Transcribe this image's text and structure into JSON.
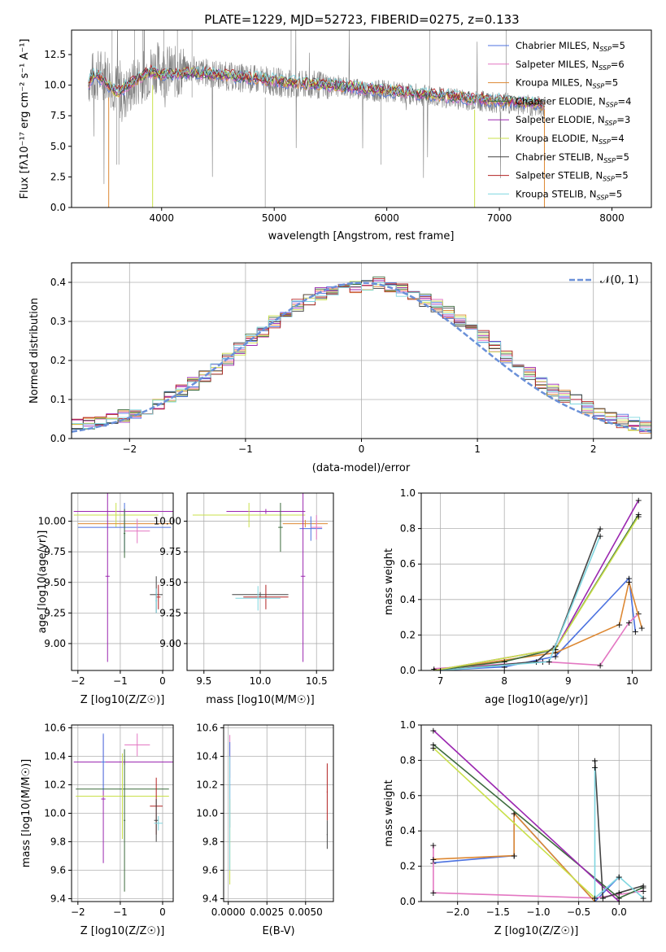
{
  "figure_title": "PLATE=1229, MJD=52723, FIBERID=0275, z=0.133",
  "legend_entries": [
    {
      "name": "Chabrier MILES",
      "nssp": "5",
      "color": "#4c72e0"
    },
    {
      "name": "Salpeter MILES",
      "nssp": "6",
      "color": "#e377c2"
    },
    {
      "name": "Kroupa MILES",
      "nssp": "5",
      "color": "#dd8833"
    },
    {
      "name": "Chabrier ELODIE",
      "nssp": "4",
      "color": "#3d6b3d"
    },
    {
      "name": "Salpeter ELODIE",
      "nssp": "3",
      "color": "#9b27b0"
    },
    {
      "name": "Kroupa ELODIE",
      "nssp": "4",
      "color": "#c9e04a"
    },
    {
      "name": "Chabrier STELIB",
      "nssp": "5",
      "color": "#444444"
    },
    {
      "name": "Salpeter STELIB",
      "nssp": "5",
      "color": "#b22222"
    },
    {
      "name": "Kroupa STELIB",
      "nssp": "5",
      "color": "#7fd6e0"
    }
  ],
  "chart_data": [
    {
      "id": "spectrum",
      "type": "line",
      "xlabel": "wavelength [Angstrom, rest frame]",
      "ylabel": "Flux [fλ10⁻¹⁷ erg cm⁻² s⁻¹ A⁻¹]",
      "xlim": [
        3200,
        8350
      ],
      "ylim": [
        0,
        14.5
      ],
      "xticks": [
        "4000",
        "5000",
        "6000",
        "7000",
        "8000"
      ],
      "yticks": [
        "0.0",
        "2.5",
        "5.0",
        "7.5",
        "10.0",
        "12.5"
      ],
      "data_series": {
        "name": "data",
        "color": "#808080",
        "x": [
          3350,
          3500,
          3650,
          3800,
          3950,
          4100,
          4250,
          4400,
          4600,
          4800,
          5000,
          5200,
          5400,
          5600,
          5800,
          6000,
          6200,
          6400,
          6600,
          6800,
          7000,
          7200,
          7400
        ],
        "y": [
          10.5,
          11.0,
          9.0,
          10.5,
          11.5,
          11.0,
          11.3,
          11.0,
          10.7,
          10.5,
          10.3,
          10.0,
          10.0,
          9.9,
          9.6,
          9.5,
          9.3,
          9.1,
          8.9,
          8.7,
          8.6,
          8.4,
          8.2
        ]
      },
      "model_x": [
        3350,
        3400,
        3500,
        3600,
        3700,
        3800,
        3900,
        4000,
        4200,
        4500,
        4800,
        5200,
        5600,
        6000,
        6400,
        6800,
        7200,
        7400
      ],
      "model_y": [
        10.1,
        10.9,
        10.3,
        9.3,
        10.0,
        10.6,
        11.1,
        10.8,
        11.0,
        10.9,
        10.6,
        10.2,
        9.9,
        9.6,
        9.2,
        8.9,
        8.6,
        8.4
      ]
    },
    {
      "id": "residuals",
      "type": "bar",
      "xlabel": "(data-model)/error",
      "ylabel": "Normed distribution",
      "xlim": [
        -2.5,
        2.5
      ],
      "ylim": [
        0,
        0.45
      ],
      "xticks": [
        "−2",
        "−1",
        "0",
        "1",
        "2"
      ],
      "yticks": [
        "0.0",
        "0.1",
        "0.2",
        "0.3",
        "0.4"
      ],
      "legend": "𝒩(0, 1)",
      "normal_color": "#6a90d8",
      "bin_edges": [
        -2.5,
        -2.4,
        -2.3,
        -2.2,
        -2.1,
        -2.0,
        -1.9,
        -1.8,
        -1.7,
        -1.6,
        -1.5,
        -1.4,
        -1.3,
        -1.2,
        -1.1,
        -1.0,
        -0.9,
        -0.8,
        -0.7,
        -0.6,
        -0.5,
        -0.4,
        -0.3,
        -0.2,
        -0.1,
        0.0,
        0.1,
        0.2,
        0.3,
        0.4,
        0.5,
        0.6,
        0.7,
        0.8,
        0.9,
        1.0,
        1.1,
        1.2,
        1.3,
        1.4,
        1.5,
        1.6,
        1.7,
        1.8,
        1.9,
        2.0,
        2.1,
        2.2,
        2.3,
        2.4,
        2.5
      ],
      "base_density": [
        0.035,
        0.038,
        0.042,
        0.05,
        0.058,
        0.068,
        0.078,
        0.09,
        0.105,
        0.12,
        0.14,
        0.16,
        0.18,
        0.205,
        0.23,
        0.25,
        0.275,
        0.3,
        0.32,
        0.34,
        0.355,
        0.37,
        0.38,
        0.385,
        0.39,
        0.395,
        0.4,
        0.39,
        0.38,
        0.37,
        0.355,
        0.34,
        0.325,
        0.3,
        0.28,
        0.26,
        0.235,
        0.21,
        0.19,
        0.165,
        0.145,
        0.125,
        0.11,
        0.095,
        0.08,
        0.065,
        0.055,
        0.045,
        0.038,
        0.03
      ]
    },
    {
      "id": "age_vs_Z",
      "type": "scatter",
      "xlabel": "Z [log10(Z/Z☉)]",
      "ylabel": "age  [log10(age/yr)]",
      "xlim": [
        -2.15,
        0.25
      ],
      "ylim": [
        8.78,
        10.23
      ],
      "xticks": [
        "−2",
        "−1",
        "0"
      ],
      "yticks": [
        "9.00",
        "9.25",
        "9.50",
        "9.75",
        "10.00"
      ]
    },
    {
      "id": "age_vs_mass",
      "type": "scatter",
      "xlabel": "mass [log10(M/M☉)]",
      "ylabel": "",
      "xlim": [
        9.35,
        10.65
      ],
      "ylim": [
        8.78,
        10.23
      ],
      "xticks": [
        "9.5",
        "10.0",
        "10.5"
      ],
      "yticks": [
        "9.00",
        "9.25",
        "9.50",
        "9.75",
        "10.00"
      ]
    },
    {
      "id": "massweight_vs_age",
      "type": "line",
      "xlabel": "age  [log10(age/yr)]",
      "ylabel": "mass weight",
      "xlim": [
        6.7,
        10.3
      ],
      "ylim": [
        0,
        1.0
      ],
      "xticks": [
        "7",
        "8",
        "9",
        "10"
      ],
      "yticks": [
        "0.0",
        "0.2",
        "0.4",
        "0.6",
        "0.8",
        "1.0"
      ]
    },
    {
      "id": "mass_vs_Z",
      "type": "scatter",
      "xlabel": "Z [log10(Z/Z☉)]",
      "ylabel": "mass [log10(M/M☉)]",
      "xlim": [
        -2.15,
        0.25
      ],
      "ylim": [
        9.38,
        10.62
      ],
      "xticks": [
        "−2",
        "−1",
        "0"
      ],
      "yticks": [
        "9.4",
        "9.6",
        "9.8",
        "10.0",
        "10.2",
        "10.4",
        "10.6"
      ]
    },
    {
      "id": "mass_vs_EBV",
      "type": "scatter",
      "xlabel": "E(B-V)",
      "ylabel": "",
      "xlim": [
        -0.0003,
        0.0068
      ],
      "ylim": [
        9.38,
        10.62
      ],
      "xticks": [
        "0.0000",
        "0.0025",
        "0.0050"
      ],
      "yticks": [
        "9.4",
        "9.6",
        "9.8",
        "10.0",
        "10.2",
        "10.4",
        "10.6"
      ]
    },
    {
      "id": "massweight_vs_Z",
      "type": "line",
      "xlabel": "Z [log10(Z/Z☉)]",
      "ylabel": "mass weight",
      "xlim": [
        -2.45,
        0.4
      ],
      "ylim": [
        0,
        1.0
      ],
      "xticks": [
        "−2.0",
        "−1.5",
        "−1.0",
        "−0.5",
        "0.0"
      ],
      "yticks": [
        "0.0",
        "0.2",
        "0.4",
        "0.6",
        "0.8",
        "1.0"
      ]
    }
  ]
}
